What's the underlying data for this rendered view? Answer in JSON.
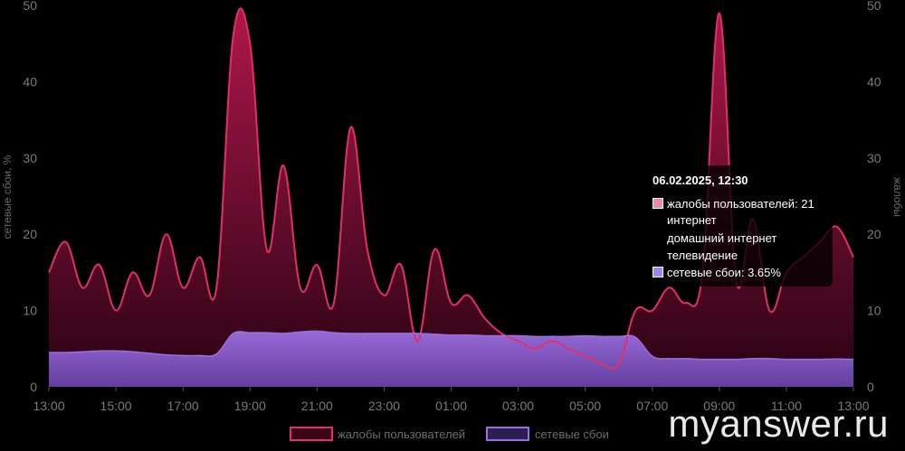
{
  "chart_data": {
    "type": "area",
    "x": [
      "13:00",
      "13:30",
      "14:00",
      "14:30",
      "15:00",
      "15:30",
      "16:00",
      "16:30",
      "17:00",
      "17:30",
      "18:00",
      "18:30",
      "19:00",
      "19:30",
      "20:00",
      "20:30",
      "21:00",
      "21:30",
      "22:00",
      "22:30",
      "23:00",
      "23:30",
      "00:00",
      "00:30",
      "01:00",
      "01:30",
      "02:00",
      "02:30",
      "03:00",
      "03:30",
      "04:00",
      "04:30",
      "05:00",
      "05:30",
      "06:00",
      "06:30",
      "07:00",
      "07:30",
      "08:00",
      "08:30",
      "09:00",
      "09:30",
      "10:00",
      "10:30",
      "11:00",
      "11:30",
      "12:00",
      "12:30",
      "13:00"
    ],
    "x_ticks": [
      "13:00",
      "15:00",
      "17:00",
      "19:00",
      "21:00",
      "23:00",
      "01:00",
      "03:00",
      "05:00",
      "07:00",
      "09:00",
      "11:00",
      "13:00"
    ],
    "y_left": {
      "label": "сетевые сбои, %",
      "ticks": [
        0,
        10,
        20,
        30,
        40,
        50
      ],
      "lim": [
        0,
        50
      ]
    },
    "y_right": {
      "label": "жалобы",
      "ticks": [
        0,
        10,
        20,
        30,
        40,
        50
      ],
      "lim": [
        0,
        50
      ]
    },
    "series": [
      {
        "name": "жалобы пользователей",
        "color": "#e0306a",
        "values": [
          15,
          19,
          13,
          16,
          10,
          15,
          12,
          20,
          13,
          17,
          13,
          46,
          45,
          18,
          29,
          13,
          16,
          11,
          34,
          18,
          12,
          16,
          6,
          18,
          11,
          12,
          9,
          7,
          6,
          5,
          6,
          5,
          4,
          3,
          3,
          10,
          10,
          13,
          11,
          15,
          49,
          14,
          22,
          10,
          15,
          17,
          19,
          21,
          17
        ]
      },
      {
        "name": "сетевые сбои",
        "color": "#9b6ee0",
        "values": [
          4.5,
          4.5,
          4.6,
          4.7,
          4.7,
          4.6,
          4.4,
          4.2,
          4.1,
          4.1,
          4.3,
          7.0,
          7.1,
          7.1,
          7.0,
          7.2,
          7.3,
          7.1,
          7.0,
          7.0,
          7.0,
          7.0,
          7.0,
          6.9,
          6.8,
          6.8,
          6.7,
          6.7,
          6.7,
          6.6,
          6.6,
          6.6,
          6.7,
          6.6,
          6.6,
          6.5,
          4.0,
          3.7,
          3.7,
          3.6,
          3.6,
          3.6,
          3.7,
          3.7,
          3.6,
          3.6,
          3.6,
          3.65,
          3.6
        ]
      }
    ],
    "legend": [
      "жалобы пользователей",
      "сетевые сбои"
    ],
    "legend_position": "bottom",
    "grid": false
  },
  "tooltip": {
    "title": "06.02.2025, 12:30",
    "complaints": "жалобы пользователей: 21",
    "sub1": "интернет",
    "sub2": "домашний интернет",
    "sub3": "телевидение",
    "failures": "сетевые сбои: 3.65%"
  },
  "watermark": "myanswer.ru"
}
